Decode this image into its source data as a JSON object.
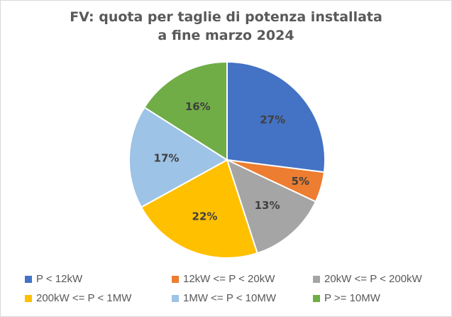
{
  "title": {
    "line1": "FV: quota per taglie di potenza installata",
    "line2": "a fine marzo 2024"
  },
  "chart_data": {
    "type": "pie",
    "title": "FV: quota per taglie di potenza installata a fine marzo 2024",
    "categories": [
      "P < 12kW",
      "12kW <= P < 20kW",
      "20kW <= P < 200kW",
      "200kW <= P < 1MW",
      "1MW <= P < 10MW",
      "P >= 10MW"
    ],
    "values": [
      27,
      5,
      13,
      22,
      17,
      16
    ],
    "labels": [
      "27%",
      "5%",
      "13%",
      "22%",
      "17%",
      "16%"
    ],
    "colors": [
      "#4472C4",
      "#ED7D31",
      "#A5A5A5",
      "#FFC000",
      "#9DC3E6",
      "#70AD47"
    ],
    "unit": "%",
    "legend_position": "bottom"
  }
}
